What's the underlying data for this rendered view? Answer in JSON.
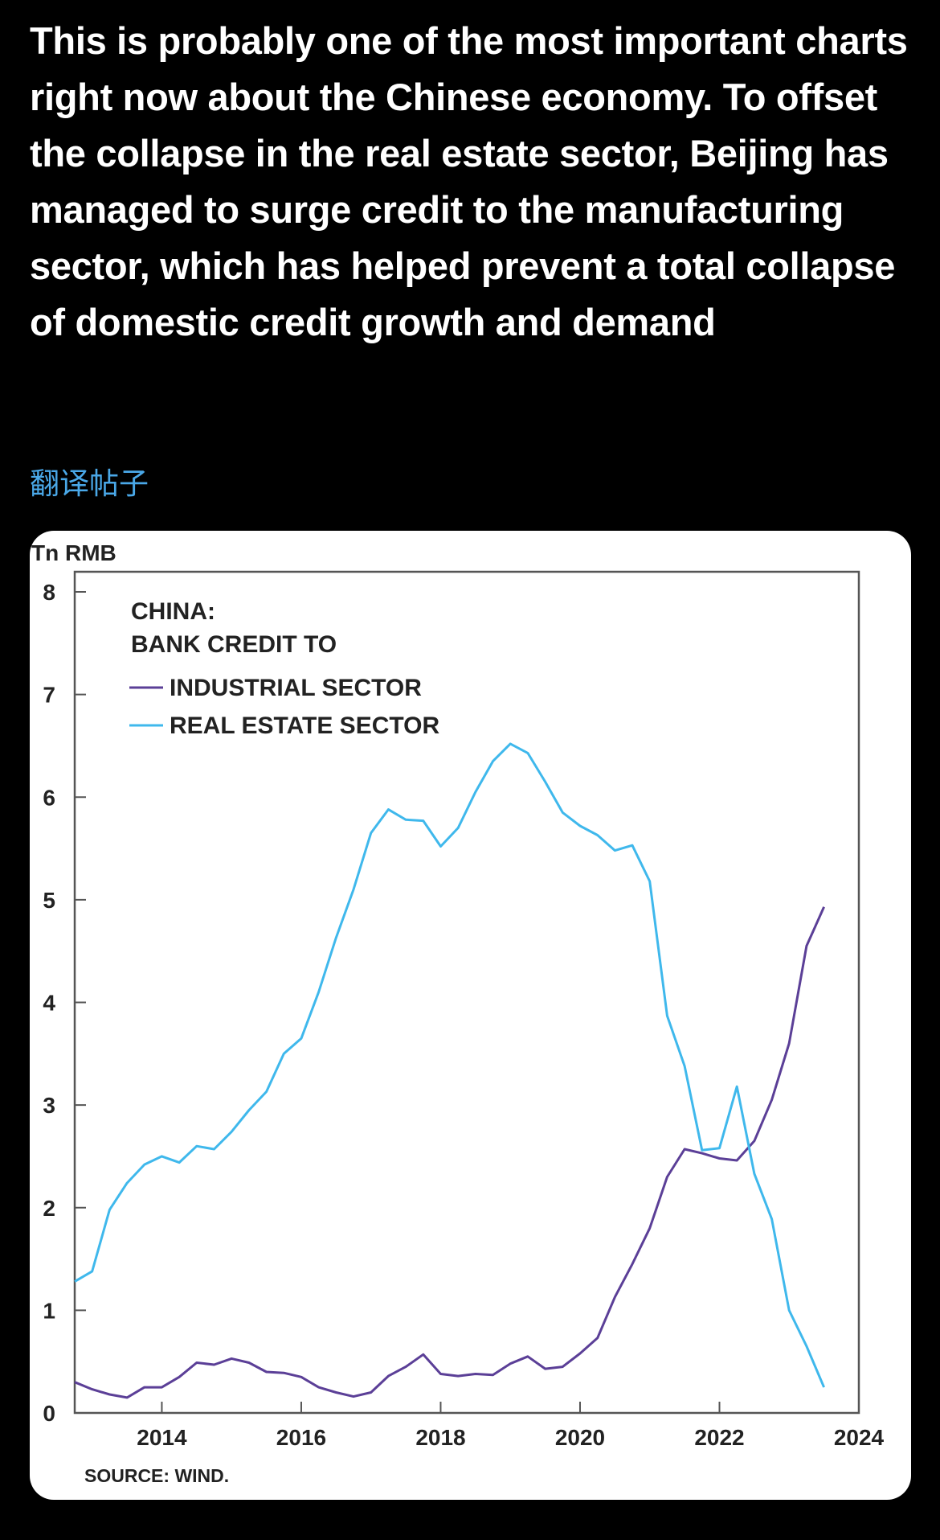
{
  "post": {
    "text": "This is probably one of the most important charts right now about the Chinese economy. To offset the collapse in the real estate sector, Beijing has managed to surge credit to the manufacturing sector, which has helped prevent a total collapse of domestic credit growth and demand",
    "translate_label": "翻译帖子"
  },
  "colors": {
    "background": "#000000",
    "post_text": "#ffffff",
    "translate_link": "#4aa8e8",
    "industrial": "#5b3f97",
    "real_estate": "#3fb8ec"
  },
  "chart_data": {
    "type": "line",
    "unit_label": "Tn RMB",
    "title_lines": [
      "CHINA:",
      "BANK CREDIT TO"
    ],
    "source": "SOURCE: WIND.",
    "ylim": [
      0,
      8
    ],
    "yticks": [
      0,
      1,
      2,
      3,
      4,
      5,
      6,
      7,
      8
    ],
    "xlim": [
      2012.75,
      2024
    ],
    "xticks": [
      2014,
      2016,
      2018,
      2020,
      2022,
      2024
    ],
    "grid": false,
    "legend_position": "top-left",
    "series": [
      {
        "name": "INDUSTRIAL SECTOR",
        "color": "#5b3f97",
        "x": [
          2012.75,
          2013.0,
          2013.25,
          2013.5,
          2013.75,
          2014.0,
          2014.25,
          2014.5,
          2014.75,
          2015.0,
          2015.25,
          2015.5,
          2015.75,
          2016.0,
          2016.25,
          2016.5,
          2016.75,
          2017.0,
          2017.25,
          2017.5,
          2017.75,
          2018.0,
          2018.25,
          2018.5,
          2018.75,
          2019.0,
          2019.25,
          2019.5,
          2019.75,
          2020.0,
          2020.25,
          2020.5,
          2020.75,
          2021.0,
          2021.25,
          2021.5,
          2021.75,
          2022.0,
          2022.25,
          2022.5,
          2022.75,
          2023.0,
          2023.25,
          2023.5,
          2023.75
        ],
        "y": [
          0.3,
          0.23,
          0.18,
          0.15,
          0.25,
          0.25,
          0.35,
          0.49,
          0.47,
          0.53,
          0.49,
          0.4,
          0.39,
          0.35,
          0.25,
          0.2,
          0.16,
          0.2,
          0.36,
          0.45,
          0.57,
          0.38,
          0.36,
          0.38,
          0.37,
          0.48,
          0.55,
          0.43,
          0.45,
          0.58,
          0.73,
          1.13,
          1.45,
          1.8,
          2.3,
          2.57,
          2.53,
          2.48,
          2.46,
          2.65,
          3.05,
          3.6,
          4.55,
          4.93,
          null
        ]
      },
      {
        "name": "REAL ESTATE SECTOR",
        "color": "#3fb8ec",
        "x": [
          2012.75,
          2013.0,
          2013.25,
          2013.5,
          2013.75,
          2014.0,
          2014.25,
          2014.5,
          2014.75,
          2015.0,
          2015.25,
          2015.5,
          2015.75,
          2016.0,
          2016.25,
          2016.5,
          2016.75,
          2017.0,
          2017.25,
          2017.5,
          2017.75,
          2018.0,
          2018.25,
          2018.5,
          2018.75,
          2019.0,
          2019.25,
          2019.5,
          2019.75,
          2020.0,
          2020.25,
          2020.5,
          2020.75,
          2021.0,
          2021.25,
          2021.5,
          2021.75,
          2022.0,
          2022.25,
          2022.5,
          2022.75,
          2023.0,
          2023.25,
          2023.5,
          2023.75
        ],
        "y": [
          1.28,
          1.38,
          1.98,
          2.24,
          2.42,
          2.5,
          2.44,
          2.6,
          2.57,
          2.74,
          2.95,
          3.13,
          3.5,
          3.65,
          4.1,
          4.63,
          5.1,
          5.65,
          5.88,
          5.78,
          5.77,
          5.52,
          5.7,
          6.05,
          6.35,
          6.52,
          6.43,
          6.15,
          5.85,
          5.72,
          5.63,
          5.48,
          5.53,
          5.18,
          3.87,
          3.38,
          2.56,
          2.58,
          3.18,
          2.33,
          1.89,
          1.0,
          0.65,
          0.25,
          null
        ]
      }
    ]
  }
}
